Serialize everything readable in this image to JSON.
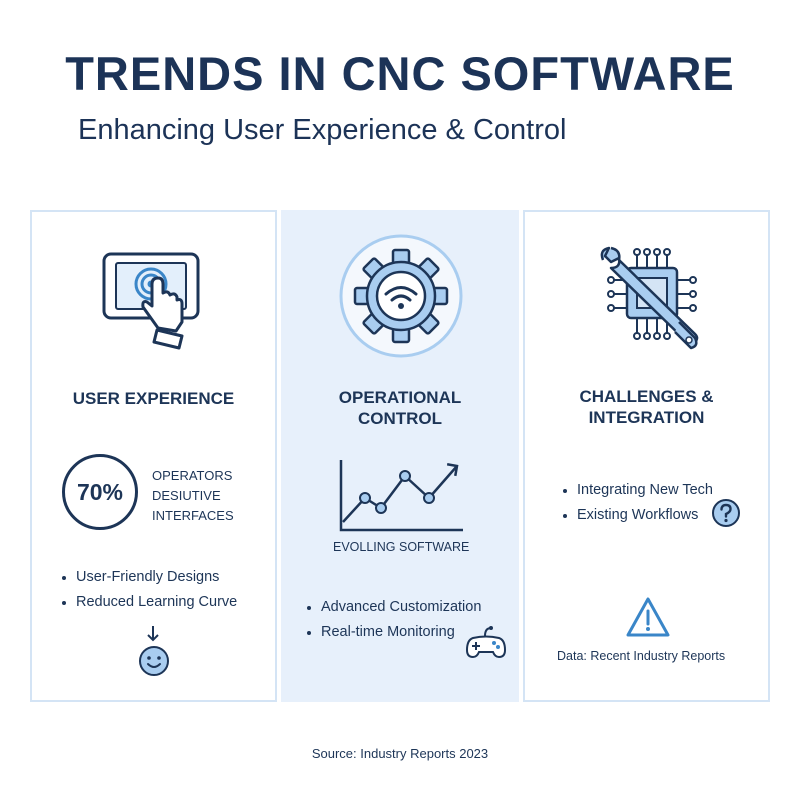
{
  "header": {
    "title": "TRENDS IN CNC SOFTWARE",
    "subtitle": "Enhancing User Experience & Control"
  },
  "colors": {
    "navy": "#1d3557",
    "accent_blue": "#3a86c8",
    "light_blue": "#a9cdf0",
    "panel_bg": "#e7f0fb",
    "panel_border": "#d4e4f5"
  },
  "panels": [
    {
      "heading": "USER EXPERIENCE",
      "icon": "touchscreen-tablet-icon",
      "stat": {
        "value": "70%",
        "line1": "OPERATORS",
        "line2": "DESIUTIVE",
        "line3": "INTERFACES"
      },
      "bullets": [
        "User-Friendly Designs",
        "Reduced Learning Curve"
      ],
      "extra_icons": [
        "arrow-down-icon",
        "smiley-face-icon"
      ]
    },
    {
      "heading_line1": "OPERATIONAL",
      "heading_line2": "CONTROL",
      "icon": "gear-wifi-icon",
      "chart_caption": "EVOLLING SOFTWARE",
      "bullets": [
        "Advanced Customization",
        "Real-time Monitoring"
      ],
      "extra_icons": [
        "line-chart-icon",
        "game-controller-icon"
      ]
    },
    {
      "heading_line1": "CHALLENGES &",
      "heading_line2": "INTEGRATION",
      "icon": "wrench-chip-icon",
      "bullets": [
        "Integrating New Tech",
        "Existing Workflows"
      ],
      "note": "Data: Recent Industry Reports",
      "extra_icons": [
        "question-circle-icon",
        "warning-triangle-icon"
      ]
    }
  ],
  "footer": {
    "source": "Source: Industry Reports 2023"
  }
}
